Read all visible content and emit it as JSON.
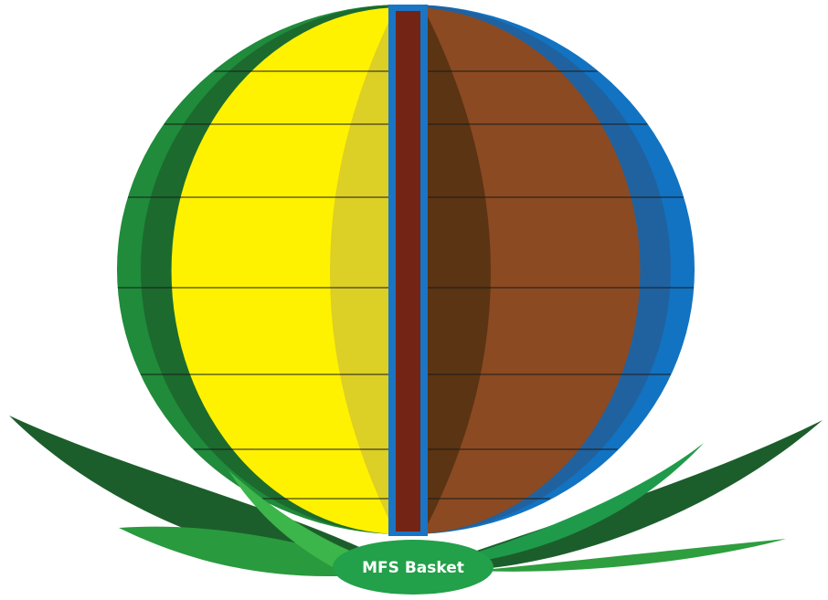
{
  "logo": {
    "label": "MFS Basket"
  }
}
